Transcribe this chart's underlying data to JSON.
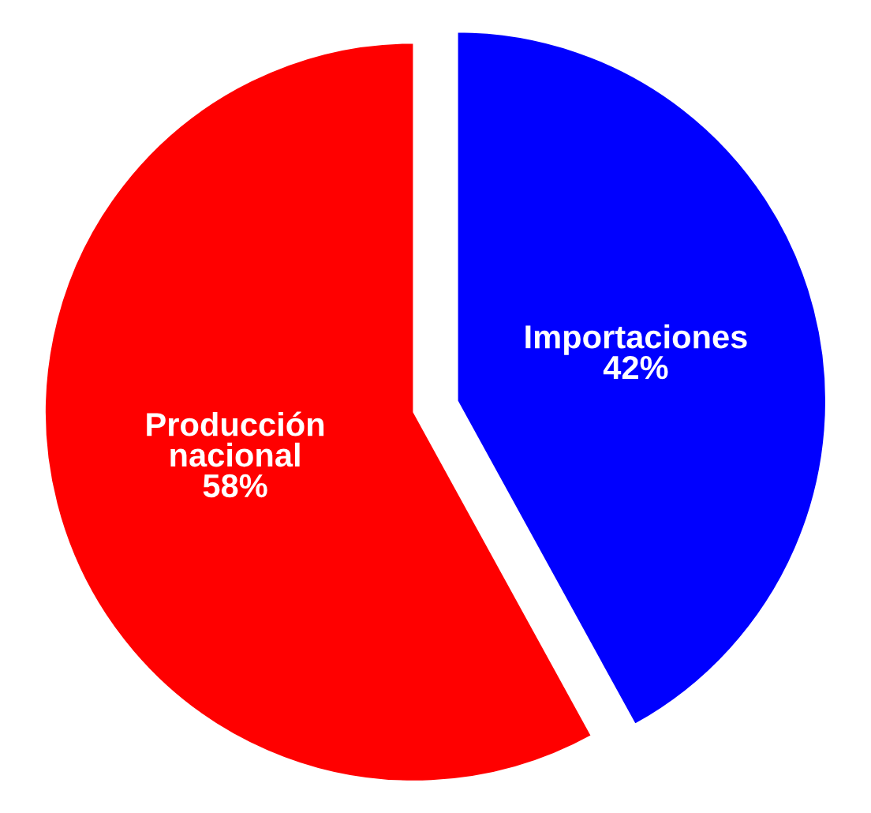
{
  "chart_data": {
    "type": "pie",
    "categories": [
      "Importaciones",
      "Producción\nnacional"
    ],
    "values": [
      42,
      58
    ],
    "value_labels": [
      "42%",
      "58%"
    ],
    "colors": [
      "#0000ff",
      "#ff0000"
    ],
    "legend": false
  }
}
